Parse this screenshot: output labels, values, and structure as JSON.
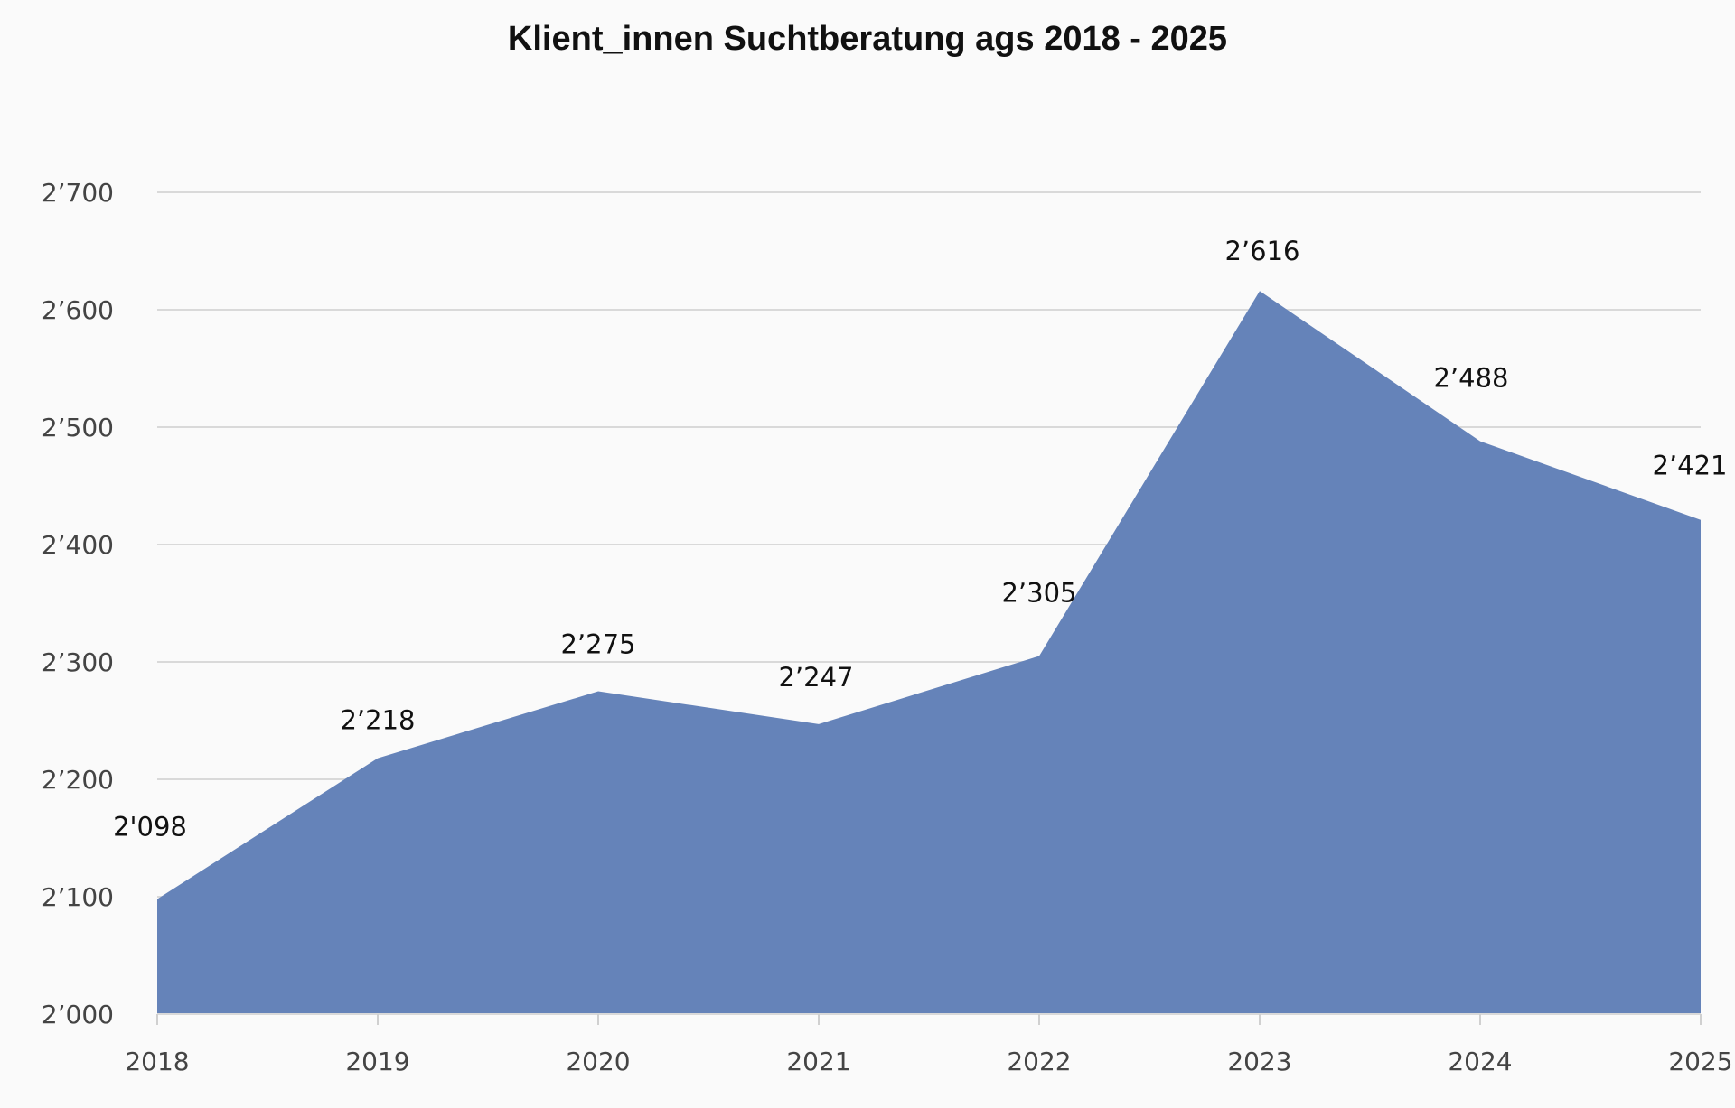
{
  "chart_data": {
    "type": "area",
    "title": "Klient_innen Suchtberatung ags 2018 - 2025",
    "xlabel": "",
    "ylabel": "",
    "categories": [
      "2018",
      "2019",
      "2020",
      "2021",
      "2022",
      "2023",
      "2024",
      "2025"
    ],
    "values": [
      2098,
      2218,
      2275,
      2247,
      2305,
      2616,
      2488,
      2421
    ],
    "data_labels": [
      "2'098",
      "2’218",
      "2’275",
      "2’247",
      "2’305",
      "2’616",
      "2’488",
      "2’421"
    ],
    "ylim": [
      2000,
      2700
    ],
    "y_ticks": [
      2000,
      2100,
      2200,
      2300,
      2400,
      2500,
      2600,
      2700
    ],
    "y_tick_labels": [
      "2’000",
      "2’100",
      "2’200",
      "2’300",
      "2’400",
      "2’500",
      "2’600",
      "2’700"
    ],
    "grid": true,
    "legend": "none",
    "colors": {
      "fill": "#6583b9",
      "grid": "#d9d9d9",
      "background": "#fafafa"
    }
  }
}
